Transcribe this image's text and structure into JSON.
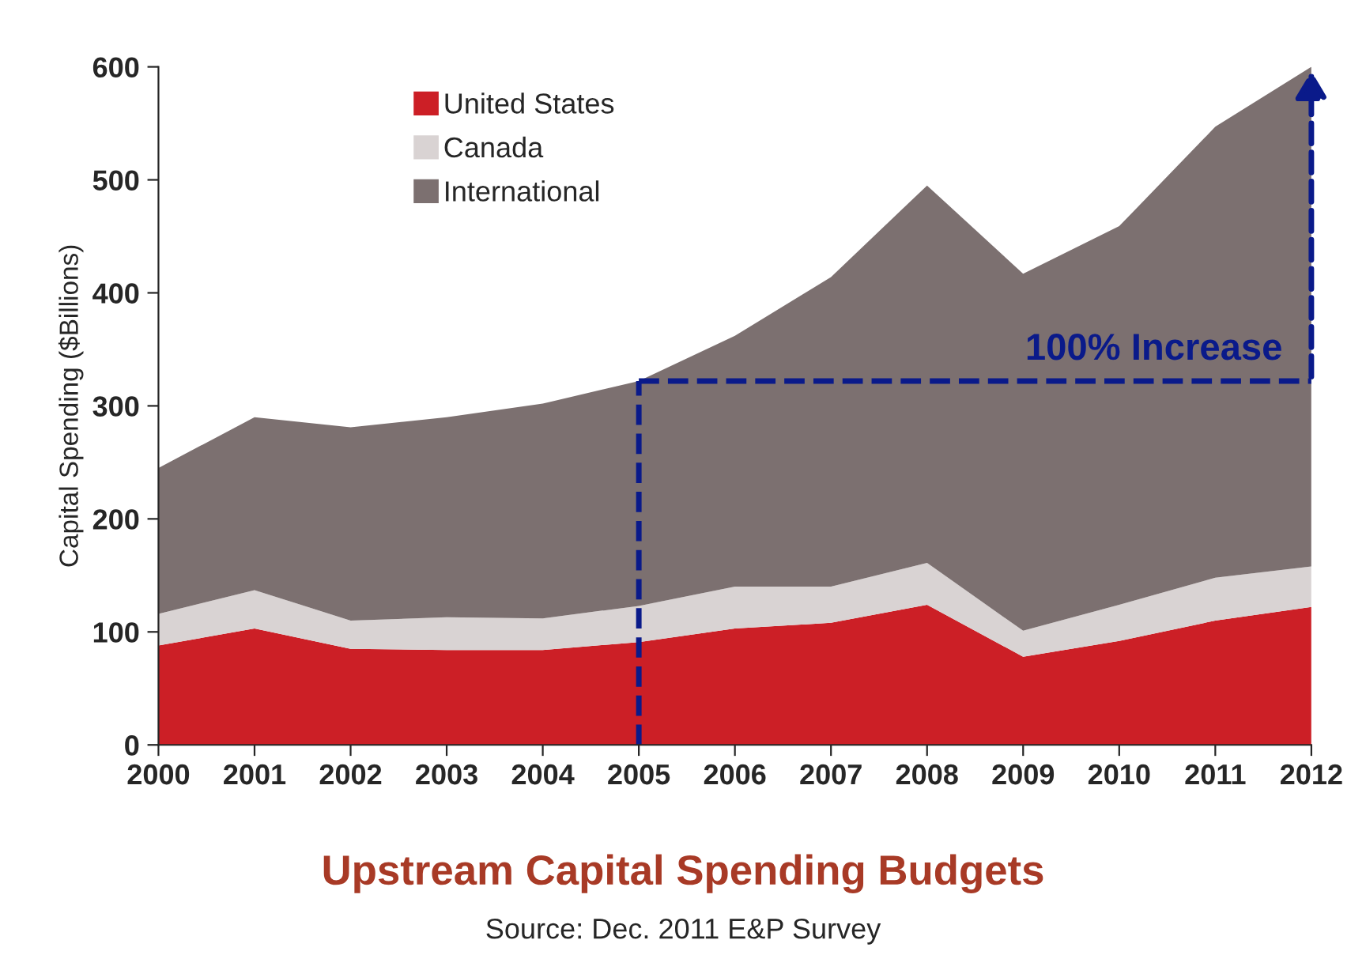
{
  "chart_data": {
    "type": "area",
    "stacked": true,
    "title": "Upstream Capital Spending Budgets",
    "ylabel": "Capital Spending ($Billions)",
    "x": [
      2000,
      2001,
      2002,
      2003,
      2004,
      2005,
      2006,
      2007,
      2008,
      2009,
      2010,
      2011,
      2012
    ],
    "series": [
      {
        "name": "United States",
        "color": "#cc1f26",
        "values": [
          88,
          103,
          85,
          84,
          84,
          91,
          103,
          108,
          124,
          78,
          92,
          110,
          122
        ]
      },
      {
        "name": "Canada",
        "color": "#d9d3d3",
        "values": [
          28,
          34,
          25,
          29,
          28,
          32,
          37,
          32,
          37,
          23,
          32,
          38,
          36
        ]
      },
      {
        "name": "International",
        "color": "#7c7070",
        "values": [
          129,
          153,
          171,
          177,
          190,
          199,
          222,
          274,
          334,
          316,
          335,
          399,
          442
        ]
      }
    ],
    "annotations": [
      {
        "text": "100% Increase",
        "x": 2012,
        "y": 600
      },
      "Source: Dec. 2011 E&P Survey"
    ],
    "xlim": [
      2000,
      2012
    ],
    "xticks": [
      2000,
      2001,
      2002,
      2003,
      2004,
      2005,
      2006,
      2007,
      2008,
      2009,
      2010,
      2011,
      2012
    ],
    "ylim": [
      0,
      600
    ],
    "yticks": [
      0,
      100,
      200,
      300,
      400,
      500,
      600
    ],
    "grid": false,
    "legend": "top left"
  }
}
